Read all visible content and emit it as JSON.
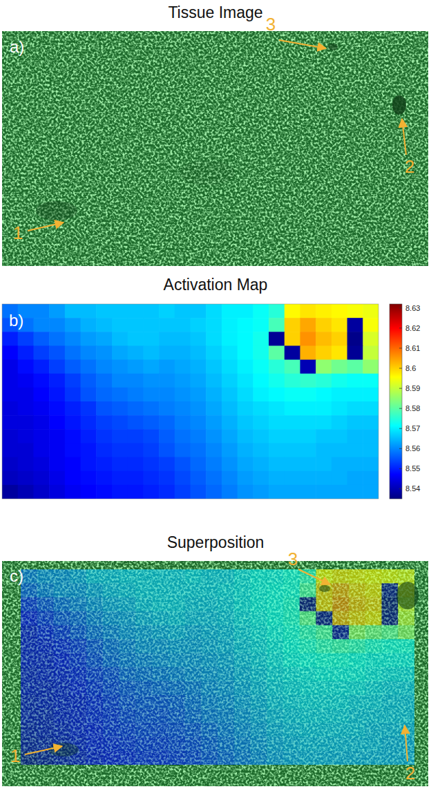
{
  "chart_data": [
    {
      "type": "image",
      "title": "Tissue Image",
      "panel_label": "a)",
      "annotations": [
        "1",
        "2",
        "3"
      ]
    },
    {
      "type": "heatmap",
      "title": "Activation Map",
      "panel_label": "b)",
      "colorbar_range": [
        8.535,
        8.632
      ],
      "colorbar_ticks": [
        8.54,
        8.55,
        8.56,
        8.57,
        8.58,
        8.59,
        8.6,
        8.61,
        8.62,
        8.63
      ],
      "cells": [
        [
          8.558,
          8.56,
          8.56,
          8.562,
          8.565,
          8.565,
          8.566,
          8.566,
          8.566,
          8.566,
          8.567,
          8.566,
          8.566,
          8.568,
          8.57,
          8.57,
          8.572,
          8.575,
          8.596,
          8.598,
          8.597,
          8.596,
          8.595,
          8.594
        ],
        [
          8.555,
          8.558,
          8.56,
          8.56,
          8.562,
          8.564,
          8.565,
          8.566,
          8.566,
          8.566,
          8.566,
          8.566,
          8.567,
          8.568,
          8.57,
          8.571,
          8.572,
          8.578,
          8.6,
          8.604,
          8.6,
          8.598,
          8.538,
          8.595
        ],
        [
          8.55,
          8.553,
          8.556,
          8.558,
          8.56,
          8.562,
          8.563,
          8.565,
          8.566,
          8.566,
          8.565,
          8.565,
          8.566,
          8.568,
          8.57,
          8.571,
          8.573,
          8.537,
          8.6,
          8.606,
          8.602,
          8.6,
          8.536,
          8.592
        ],
        [
          8.547,
          8.55,
          8.553,
          8.555,
          8.558,
          8.56,
          8.561,
          8.563,
          8.564,
          8.565,
          8.564,
          8.564,
          8.565,
          8.567,
          8.569,
          8.571,
          8.573,
          8.58,
          8.538,
          8.603,
          8.6,
          8.598,
          8.537,
          8.59
        ],
        [
          8.545,
          8.548,
          8.55,
          8.553,
          8.556,
          8.558,
          8.56,
          8.561,
          8.562,
          8.563,
          8.562,
          8.563,
          8.564,
          8.566,
          8.568,
          8.57,
          8.572,
          8.575,
          8.578,
          8.54,
          8.585,
          8.582,
          8.58,
          8.585
        ],
        [
          8.545,
          8.546,
          8.548,
          8.55,
          8.553,
          8.556,
          8.558,
          8.56,
          8.56,
          8.561,
          8.561,
          8.562,
          8.563,
          8.565,
          8.567,
          8.569,
          8.571,
          8.573,
          8.575,
          8.576,
          8.575,
          8.573,
          8.572,
          8.572
        ],
        [
          8.545,
          8.545,
          8.547,
          8.549,
          8.552,
          8.555,
          8.557,
          8.558,
          8.559,
          8.56,
          8.56,
          8.561,
          8.562,
          8.564,
          8.566,
          8.568,
          8.57,
          8.571,
          8.572,
          8.572,
          8.571,
          8.57,
          8.57,
          8.57
        ],
        [
          8.544,
          8.545,
          8.546,
          8.548,
          8.55,
          8.552,
          8.555,
          8.556,
          8.557,
          8.558,
          8.559,
          8.56,
          8.561,
          8.563,
          8.565,
          8.567,
          8.568,
          8.569,
          8.57,
          8.57,
          8.57,
          8.569,
          8.568,
          8.568
        ],
        [
          8.544,
          8.544,
          8.545,
          8.547,
          8.549,
          8.551,
          8.553,
          8.554,
          8.555,
          8.556,
          8.557,
          8.559,
          8.56,
          8.562,
          8.564,
          8.566,
          8.567,
          8.568,
          8.568,
          8.568,
          8.568,
          8.567,
          8.566,
          8.566
        ],
        [
          8.543,
          8.544,
          8.545,
          8.546,
          8.548,
          8.55,
          8.552,
          8.553,
          8.553,
          8.554,
          8.556,
          8.558,
          8.559,
          8.561,
          8.563,
          8.565,
          8.566,
          8.567,
          8.567,
          8.567,
          8.566,
          8.566,
          8.565,
          8.565
        ],
        [
          8.543,
          8.543,
          8.545,
          8.546,
          8.548,
          8.549,
          8.551,
          8.552,
          8.552,
          8.553,
          8.555,
          8.557,
          8.558,
          8.56,
          8.562,
          8.564,
          8.565,
          8.566,
          8.566,
          8.566,
          8.565,
          8.565,
          8.565,
          8.565
        ],
        [
          8.542,
          8.543,
          8.544,
          8.546,
          8.547,
          8.549,
          8.55,
          8.551,
          8.551,
          8.552,
          8.553,
          8.555,
          8.557,
          8.559,
          8.561,
          8.563,
          8.564,
          8.565,
          8.565,
          8.565,
          8.565,
          8.564,
          8.564,
          8.564
        ],
        [
          8.541,
          8.542,
          8.543,
          8.545,
          8.547,
          8.548,
          8.549,
          8.55,
          8.55,
          8.551,
          8.552,
          8.554,
          8.556,
          8.558,
          8.56,
          8.562,
          8.563,
          8.564,
          8.564,
          8.564,
          8.564,
          8.564,
          8.563,
          8.563
        ],
        [
          8.538,
          8.54,
          8.542,
          8.544,
          8.546,
          8.547,
          8.548,
          8.549,
          8.549,
          8.55,
          8.551,
          8.553,
          8.555,
          8.557,
          8.559,
          8.561,
          8.562,
          8.563,
          8.563,
          8.563,
          8.563,
          8.563,
          8.563,
          8.563
        ]
      ]
    },
    {
      "type": "overlay",
      "title": "Superposition",
      "panel_label": "c)",
      "annotations": [
        "1",
        "2",
        "3"
      ]
    }
  ]
}
